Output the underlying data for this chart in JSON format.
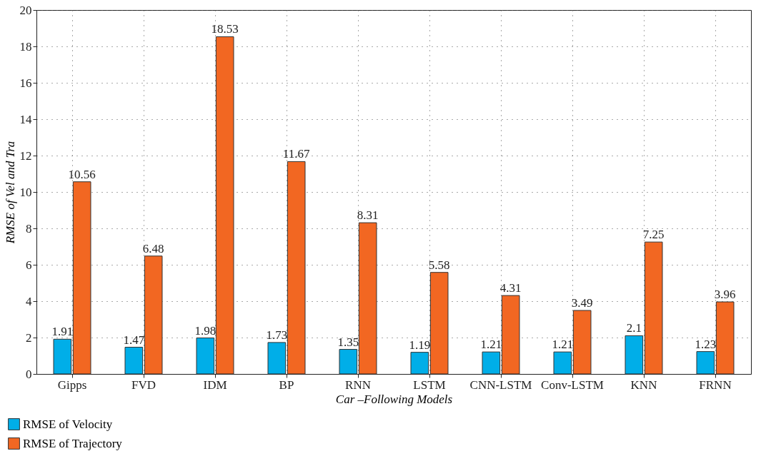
{
  "chart_data": {
    "type": "bar",
    "xlabel": "Car –Following Models",
    "ylabel": "RMSE of Vel and Tra",
    "categories": [
      "Gipps",
      "FVD",
      "IDM",
      "BP",
      "RNN",
      "LSTM",
      "CNN-LSTM",
      "Conv-LSTM",
      "KNN",
      "FRNN"
    ],
    "series": [
      {
        "name": "RMSE of Velocity",
        "color": "#00aee8",
        "values": [
          1.91,
          1.47,
          1.98,
          1.73,
          1.35,
          1.19,
          1.21,
          1.21,
          2.1,
          1.23
        ]
      },
      {
        "name": "RMSE of Trajectory",
        "color": "#f26722",
        "values": [
          10.56,
          6.48,
          18.53,
          11.67,
          8.31,
          5.58,
          4.31,
          3.49,
          7.25,
          3.96
        ]
      }
    ],
    "ylim": [
      0,
      20
    ],
    "yticks": [
      0,
      2,
      4,
      6,
      8,
      10,
      12,
      14,
      16,
      18,
      20
    ],
    "grid": true,
    "legend": "bottom left",
    "data_labels": true
  }
}
